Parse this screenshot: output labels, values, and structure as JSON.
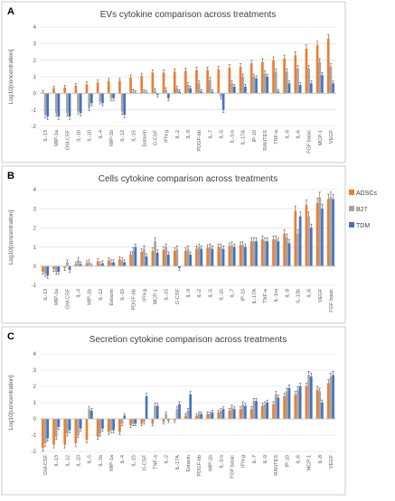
{
  "legend": {
    "items": [
      {
        "label": "ADSCs",
        "color": "#ed7d31"
      },
      {
        "label": "B27",
        "color": "#a5a5a5"
      },
      {
        "label": "TDM",
        "color": "#4472c4"
      }
    ]
  },
  "chart_data": [
    {
      "type": "bar",
      "panel_letter": "A",
      "title": "EVs cytokine comparison across treatments",
      "xlabel": "",
      "ylabel": "Log10[concentration]",
      "ylim": [
        -2,
        4
      ],
      "yticks": [
        -2,
        -1,
        0,
        1,
        2,
        3,
        4
      ],
      "grid": true,
      "categories": [
        "IL-13",
        "MIP-1a",
        "GM-CSF",
        "IL-1b",
        "IL-10",
        "IL-4",
        "MIP-1b",
        "IL-12",
        "IL-15",
        "Eotaxin",
        "G-CSF",
        "IFN-g",
        "IL-2",
        "IL-9",
        "PDGF-bb",
        "IL-7",
        "IL-5",
        "IL-1ra",
        "IL-17A",
        "IP-10",
        "RANTES",
        "TNF-a",
        "IL-8",
        "IL-6",
        "FGF basic",
        "MCP-1",
        "VEGF"
      ],
      "series": [
        {
          "name": "ADSCs",
          "values": [
            0.05,
            0.3,
            0.35,
            0.45,
            0.55,
            0.65,
            0.75,
            0.75,
            0.95,
            1.05,
            1.25,
            1.25,
            1.3,
            1.35,
            1.4,
            1.4,
            1.45,
            1.55,
            1.6,
            1.8,
            1.9,
            2.0,
            2.1,
            2.3,
            2.7,
            2.9,
            3.3
          ]
        },
        {
          "name": "B27",
          "values": [
            -1.3,
            -1.2,
            -1.2,
            -1.1,
            -0.9,
            -0.5,
            -0.3,
            -1.1,
            0.1,
            0.1,
            0.15,
            0.2,
            0.3,
            0.5,
            0.6,
            0.8,
            -0.2,
            0.6,
            1.0,
            1.0,
            1.2,
            1.3,
            1.3,
            1.5,
            1.5,
            1.9,
            1.6
          ]
        },
        {
          "name": "TDM",
          "values": [
            -1.4,
            -1.4,
            -1.4,
            -1.2,
            -0.6,
            -0.6,
            -0.3,
            -1.3,
            0.05,
            0.05,
            -0.1,
            -0.3,
            0.1,
            0.3,
            0.1,
            0.1,
            -1.0,
            0.4,
            0.4,
            0.9,
            1.0,
            0.1,
            0.6,
            0.5,
            0.6,
            1.1,
            0.6
          ]
        }
      ]
    },
    {
      "type": "bar",
      "panel_letter": "B",
      "title": "Cells cytokine comparison across treatments",
      "xlabel": "",
      "ylabel": "Log10[concentration]",
      "ylim": [
        -1,
        4
      ],
      "yticks": [
        -1,
        0,
        1,
        2,
        3,
        4
      ],
      "grid": true,
      "categories": [
        "IL-13",
        "MIP-1a",
        "GM-CSF",
        "IL-4",
        "MIP-1b",
        "IL-12",
        "Eotaxin",
        "IL-10",
        "PDGF-bb",
        "IFN-g",
        "MCP-1",
        "IL-15",
        "G-CSF",
        "IL-9",
        "IL-2",
        "IL-5",
        "IL-1b",
        "IL-7",
        "IP-10",
        "IL-17A",
        "TNF-a",
        "IL-1ra",
        "IL-8",
        "IL-13b",
        "IL-6",
        "VEGF",
        "FGF basic"
      ],
      "series": [
        {
          "name": "ADSCs",
          "values": [
            -0.3,
            -0.15,
            -0.1,
            0.1,
            0.15,
            0.25,
            0.3,
            0.35,
            0.6,
            0.75,
            0.8,
            0.85,
            0.8,
            0.8,
            0.9,
            0.95,
            1.0,
            1.05,
            1.1,
            1.3,
            1.4,
            1.4,
            1.7,
            2.9,
            3.2,
            3.3,
            3.5
          ]
        },
        {
          "name": "B27",
          "values": [
            -0.4,
            -0.3,
            0.2,
            0.3,
            0.2,
            0.1,
            0.2,
            0.3,
            0.8,
            0.9,
            1.3,
            1.0,
            0.9,
            0.9,
            1.0,
            1.0,
            1.0,
            1.1,
            1.1,
            1.3,
            1.3,
            1.4,
            1.5,
            1.7,
            2.6,
            3.6,
            3.6
          ]
        },
        {
          "name": "TDM",
          "values": [
            -0.5,
            -0.3,
            -0.2,
            0.1,
            0.0,
            0.15,
            0.2,
            0.2,
            1.0,
            0.5,
            0.7,
            0.6,
            -0.1,
            0.6,
            0.9,
            0.9,
            0.9,
            1.0,
            1.0,
            1.3,
            1.3,
            1.3,
            1.2,
            2.6,
            2.0,
            3.0,
            3.5
          ]
        }
      ]
    },
    {
      "type": "bar",
      "panel_letter": "C",
      "title": "Secretion cytokine comparison across treatments",
      "xlabel": "",
      "ylabel": "Log10[concentration]",
      "ylim": [
        -2,
        4
      ],
      "yticks": [
        -2,
        -1,
        0,
        1,
        2,
        3,
        4
      ],
      "grid": true,
      "categories": [
        "GM-CSF",
        "IL-13",
        "IL-12",
        "IL-10",
        "IL-5",
        "IL-1b",
        "MIP-1a",
        "IL-4",
        "IL-15",
        "G-CSF",
        "TNF-a",
        "IL-2",
        "IL-17A",
        "Eotaxin",
        "PDGF-bb",
        "MIP-1b",
        "IL-1ra",
        "FGF basic",
        "IFN-g",
        "IL-7",
        "IL-9",
        "RANTES",
        "IP-10",
        "IL-6",
        "MCP-1",
        "IL-8",
        "VEGF"
      ],
      "series": [
        {
          "name": "ADSCs",
          "values": [
            -1.8,
            -1.6,
            -1.6,
            -1.5,
            -1.3,
            -1.1,
            -0.8,
            -0.8,
            -0.4,
            -0.3,
            -0.3,
            -0.2,
            -0.1,
            0.2,
            0.2,
            0.3,
            0.4,
            0.5,
            0.6,
            0.6,
            0.8,
            0.9,
            1.4,
            1.5,
            2.0,
            1.8,
            2.2
          ]
        },
        {
          "name": "B27",
          "values": [
            -1.5,
            -1.1,
            -0.9,
            -1.0,
            0.6,
            -0.9,
            -0.7,
            -0.3,
            -0.3,
            -0.2,
            0.8,
            0.3,
            0.6,
            0.5,
            0.3,
            0.3,
            0.5,
            0.7,
            0.9,
            1.1,
            0.9,
            1.5,
            1.7,
            1.8,
            2.7,
            1.7,
            2.6
          ]
        },
        {
          "name": "TDM",
          "values": [
            -1.2,
            -0.5,
            -0.7,
            -0.6,
            0.5,
            -0.6,
            -0.7,
            0.2,
            -0.3,
            1.4,
            0.8,
            -0.1,
            0.9,
            1.5,
            0.3,
            0.4,
            0.6,
            0.6,
            0.8,
            1.1,
            1.0,
            1.3,
            1.9,
            2.0,
            2.6,
            1.0,
            2.7
          ]
        }
      ]
    }
  ]
}
